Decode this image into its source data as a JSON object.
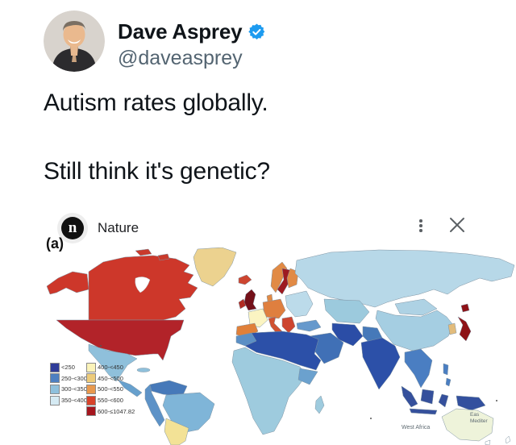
{
  "tweet": {
    "author_name": "Dave Asprey",
    "handle": "@daveasprey",
    "body_line1": "Autism rates globally.",
    "body_line2": "Still think it's genetic?"
  },
  "embed": {
    "source": "Nature",
    "logo_letter": "n"
  },
  "figure": {
    "panel_label": "(a)",
    "footnote_west": "West Africa",
    "footnote_east_line1": "Eas",
    "footnote_east_line2": "Mediter"
  },
  "chart_data": {
    "type": "choropleth-world-map",
    "title": "Autism rates globally (choropleth, panel a)",
    "legend_position": "bottom-left",
    "bins_cool": [
      {
        "label": "<250",
        "color": "#2f3c99"
      },
      {
        "label": "250-<300",
        "color": "#4d7fc1"
      },
      {
        "label": "300-<350",
        "color": "#8fc0dc"
      },
      {
        "label": "350-<400",
        "color": "#d5eaf3"
      }
    ],
    "bins_warm": [
      {
        "label": "400-<450",
        "color": "#fbf3b9"
      },
      {
        "label": "450-<500",
        "color": "#edcb7a"
      },
      {
        "label": "500-<550",
        "color": "#e8994e"
      },
      {
        "label": "550-<600",
        "color": "#d8432a"
      },
      {
        "label": "600-≤1047.82",
        "color": "#a5161e"
      }
    ],
    "regions": {
      "alaska": {
        "bin": "550-<600",
        "color": "#cd372a"
      },
      "canada": {
        "bin": "550-<600",
        "color": "#cd372a"
      },
      "arctic-islands": {
        "bin": "550-<600",
        "color": "#c93a2c"
      },
      "usa": {
        "bin": "600-≤1047.82",
        "color": "#b22329"
      },
      "greenland": {
        "bin": "450-<500",
        "color": "#ecd28f"
      },
      "iceland": {
        "bin": "550-<600",
        "color": "#cd4530"
      },
      "mexico": {
        "bin": "300-<350",
        "color": "#8fc0db"
      },
      "central-america": {
        "bin": "250-<300",
        "color": "#67a0cd"
      },
      "cuba": {
        "bin": "300-<350",
        "color": "#8fc0db"
      },
      "venezuela-guyanas": {
        "bin": "250-<300",
        "color": "#4679b9"
      },
      "andes-countries": {
        "bin": "250-<300",
        "color": "#5d92c7"
      },
      "brazil": {
        "bin": "300-<350",
        "color": "#7fb5d8"
      },
      "argentina-chile": {
        "bin": "400-<450",
        "color": "#f3e296"
      },
      "uk": {
        "bin": "600-≤1047.82",
        "color": "#741019"
      },
      "ireland": {
        "bin": "550-<600",
        "color": "#b22b22"
      },
      "france": {
        "bin": "400-<450",
        "color": "#fbf4c2"
      },
      "iberia": {
        "bin": "500-<550",
        "color": "#e0803a"
      },
      "norway": {
        "bin": "500-<550",
        "color": "#e18a45"
      },
      "sweden": {
        "bin": "600-≤1047.82",
        "color": "#9d1a20"
      },
      "finland": {
        "bin": "500-<550",
        "color": "#e18a45"
      },
      "denmark": {
        "bin": "500-<550",
        "color": "#e18a45"
      },
      "central-europe": {
        "bin": "500-<550",
        "color": "#df7f3f"
      },
      "italy": {
        "bin": "550-<600",
        "color": "#d05232"
      },
      "balkans": {
        "bin": "550-<600",
        "color": "#cd4530"
      },
      "eastern-europe": {
        "bin": "350-<400",
        "color": "#bcdbea"
      },
      "russia": {
        "bin": "350-<400",
        "color": "#b7d8e8"
      },
      "kazakhstan-central-asia": {
        "bin": "300-<350",
        "color": "#9ccadd"
      },
      "turkey": {
        "bin": "250-<300",
        "color": "#6699cc"
      },
      "morocco": {
        "bin": "250-<300",
        "color": "#5b8fc5"
      },
      "north-africa": {
        "bin": "<250",
        "color": "#2c50a8"
      },
      "subsaharan-africa": {
        "bin": "300-<350",
        "color": "#9ecbde"
      },
      "horn-of-africa": {
        "bin": "250-<300",
        "color": "#6ba1ce"
      },
      "madagascar": {
        "bin": "300-<350",
        "color": "#9ecbde"
      },
      "saudi-arabia": {
        "bin": "250-<300",
        "color": "#4070b6"
      },
      "iran": {
        "bin": "<250",
        "color": "#2b4da6"
      },
      "pakistan-afghanistan": {
        "bin": "250-<300",
        "color": "#4679b9"
      },
      "india": {
        "bin": "<250",
        "color": "#2c50a8"
      },
      "china": {
        "bin": "300-<350",
        "color": "#a5cee2"
      },
      "mongolia": {
        "bin": "350-<400",
        "color": "#aed2e4"
      },
      "southeast-asia": {
        "bin": "250-<300",
        "color": "#4a7ec2"
      },
      "philippines": {
        "bin": "250-<300",
        "color": "#4a7ec2"
      },
      "indonesia": {
        "bin": "<250",
        "color": "#35509c"
      },
      "new-guinea": {
        "bin": "<250",
        "color": "#33509e"
      },
      "japan": {
        "bin": "600-≤1047.82",
        "color": "#8e1217"
      },
      "south-korea": {
        "bin": "450-<500",
        "color": "#e2bc7c"
      },
      "australia": {
        "bin": "400-<450",
        "color": "#eef3da"
      },
      "tasmania": {
        "bin": "uncolored",
        "color": "#ffffff"
      },
      "new-zealand": {
        "bin": "uncolored",
        "color": "#ffffff"
      }
    }
  }
}
